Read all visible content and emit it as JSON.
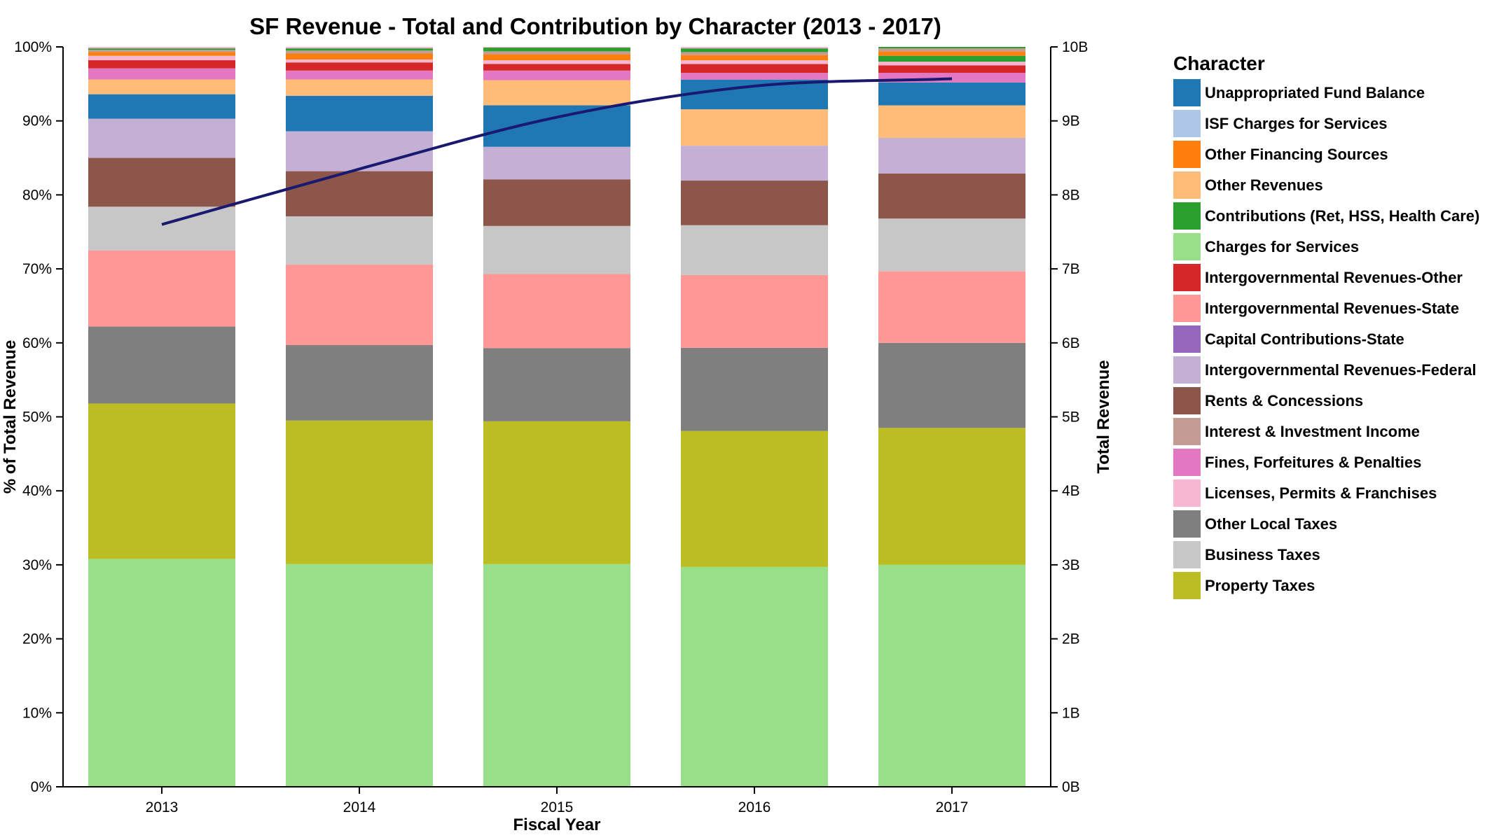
{
  "chart_data": {
    "type": "bar",
    "stacked": true,
    "normalized": true,
    "title": "SF Revenue - Total and Contribution by Character (2013 - 2017)",
    "xlabel": "Fiscal Year",
    "ylabel": "% of Total Revenue",
    "y2label": "Total Revenue",
    "categories": [
      "2013",
      "2014",
      "2015",
      "2016",
      "2017"
    ],
    "ylim": [
      0,
      100
    ],
    "y_ticks": [
      "0%",
      "10%",
      "20%",
      "30%",
      "40%",
      "50%",
      "60%",
      "70%",
      "80%",
      "90%",
      "100%"
    ],
    "y2lim": [
      0,
      10
    ],
    "y2_ticks": [
      "0B",
      "1B",
      "2B",
      "3B",
      "4B",
      "5B",
      "6B",
      "7B",
      "8B",
      "9B",
      "10B"
    ],
    "legend_title": "Character",
    "legend_position": "right",
    "legend": [
      {
        "name": "Unappropriated Fund Balance",
        "color": "#1f77b4"
      },
      {
        "name": "ISF Charges for Services",
        "color": "#aec7e8"
      },
      {
        "name": "Other Financing Sources",
        "color": "#ff7f0e"
      },
      {
        "name": "Other Revenues",
        "color": "#ffbb78"
      },
      {
        "name": "Contributions (Ret, HSS, Health Care)",
        "color": "#2ca02c"
      },
      {
        "name": "Charges for Services",
        "color": "#98df8a"
      },
      {
        "name": "Intergovernmental Revenues-Other",
        "color": "#d62728"
      },
      {
        "name": "Intergovernmental Revenues-State",
        "color": "#ff9896"
      },
      {
        "name": "Capital Contributions-State",
        "color": "#9467bd"
      },
      {
        "name": "Intergovernmental Revenues-Federal",
        "color": "#c5b0d5"
      },
      {
        "name": "Rents & Concessions",
        "color": "#8c564b"
      },
      {
        "name": "Interest & Investment Income",
        "color": "#c49c94"
      },
      {
        "name": "Fines, Forfeitures & Penalties",
        "color": "#e377c2"
      },
      {
        "name": "Licenses, Permits & Franchises",
        "color": "#f7b6d2"
      },
      {
        "name": "Other Local Taxes",
        "color": "#7f7f7f"
      },
      {
        "name": "Business Taxes",
        "color": "#c7c7c7"
      },
      {
        "name": "Property Taxes",
        "color": "#bcbd22"
      }
    ],
    "series": [
      {
        "name": "Charges for Services",
        "color": "#98df8a",
        "values": [
          30.8,
          30.1,
          30.1,
          29.6,
          30.0
        ]
      },
      {
        "name": "Property Taxes",
        "color": "#bcbd22",
        "values": [
          21.0,
          19.4,
          19.3,
          18.3,
          18.5
        ]
      },
      {
        "name": "Other Local Taxes",
        "color": "#7f7f7f",
        "values": [
          10.4,
          10.2,
          9.9,
          11.2,
          11.5
        ]
      },
      {
        "name": "Intergovernmental Revenues-State",
        "color": "#ff9896",
        "values": [
          10.3,
          10.9,
          10.0,
          9.8,
          9.7
        ]
      },
      {
        "name": "Business Taxes",
        "color": "#c7c7c7",
        "values": [
          5.9,
          6.5,
          6.5,
          6.7,
          7.1
        ]
      },
      {
        "name": "Rents & Concessions",
        "color": "#8c564b",
        "values": [
          6.6,
          6.1,
          6.3,
          6.0,
          6.1
        ]
      },
      {
        "name": "Intergovernmental Revenues-Federal",
        "color": "#c5b0d5",
        "values": [
          5.3,
          5.4,
          4.4,
          4.7,
          4.8
        ]
      },
      {
        "name": "Other Revenues",
        "color": "#ffbb78",
        "values": [
          0,
          0,
          0,
          4.9,
          4.4
        ]
      },
      {
        "name": "Unappropriated Fund Balance",
        "color": "#1f77b4",
        "values": [
          3.3,
          4.8,
          5.6,
          4.0,
          3.1
        ]
      },
      {
        "name": "Other Revenues",
        "color": "#ffbb78",
        "values": [
          2.0,
          2.2,
          3.4,
          0,
          0
        ]
      },
      {
        "name": "Fines, Forfeitures & Penalties",
        "color": "#e377c2",
        "values": [
          1.5,
          1.2,
          1.3,
          0.9,
          1.3
        ]
      },
      {
        "name": "Intergovernmental Revenues-Other",
        "color": "#d62728",
        "values": [
          1.1,
          1.1,
          0.9,
          1.2,
          1.0
        ]
      },
      {
        "name": "Licenses, Permits & Franchises",
        "color": "#f7b6d2",
        "values": [
          0.6,
          0.4,
          0.5,
          0.5,
          0.5
        ]
      },
      {
        "name": "Contributions (Ret, HSS, Health Care)",
        "color": "#2ca02c",
        "values": [
          0,
          0,
          0,
          0,
          0.8
        ]
      },
      {
        "name": "Other Financing Sources",
        "color": "#ff7f0e",
        "values": [
          0.5,
          0.8,
          0.8,
          0.7,
          0.6
        ]
      },
      {
        "name": "Interest & Investment Income",
        "color": "#c49c94",
        "values": [
          0.3,
          0.4,
          0.4,
          0.4,
          0.4
        ]
      },
      {
        "name": "Contributions (Ret, HSS, Health Care)",
        "color": "#2ca02c",
        "values": [
          0.2,
          0.3,
          0.5,
          0.5,
          0.2
        ]
      },
      {
        "name": "Licenses, Permits & Franchises",
        "color": "#f7b6d2",
        "values": [
          0.2,
          0.2,
          0.1,
          0.2,
          0
        ]
      }
    ],
    "line": {
      "name": "Total Revenue",
      "unit": "B",
      "color": "#191970",
      "values": [
        7.6,
        8.35,
        9.05,
        9.47,
        9.57
      ]
    }
  }
}
